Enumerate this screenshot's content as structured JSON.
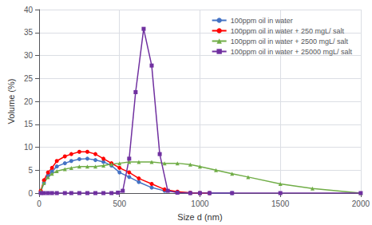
{
  "chart_data": {
    "type": "line",
    "xlabel": "Size d (nm)",
    "ylabel": "Volume (%)",
    "xlim": [
      0,
      2000
    ],
    "ylim": [
      0,
      40
    ],
    "xticks": [
      0,
      500,
      1000,
      1500,
      2000
    ],
    "yticks": [
      0,
      5,
      10,
      15,
      20,
      25,
      30,
      35,
      40
    ],
    "grid": true,
    "legend": "upper right",
    "series": [
      {
        "name": "100ppm oil in water",
        "color": "#4472C4",
        "marker": "circle",
        "x": [
          10,
          30,
          55,
          80,
          110,
          160,
          200,
          250,
          300,
          350,
          400,
          450,
          500,
          560,
          620,
          700,
          780,
          860,
          940,
          1000,
          1060,
          1200
        ],
        "values": [
          0.2,
          2.2,
          3.8,
          4.7,
          5.8,
          6.5,
          7.0,
          7.4,
          7.5,
          7.2,
          6.8,
          6.0,
          4.5,
          3.5,
          2.4,
          1.2,
          0.5,
          0.2,
          0.05,
          0.0,
          0.0,
          0.0
        ]
      },
      {
        "name": "100ppm oil in water + 250 mgL/ salt",
        "color": "#FF0000",
        "marker": "circle",
        "x": [
          10,
          30,
          55,
          80,
          110,
          160,
          200,
          250,
          300,
          350,
          400,
          450,
          500,
          560,
          620,
          700,
          780,
          860,
          940,
          1000,
          1060
        ],
        "values": [
          0.5,
          2.8,
          4.5,
          5.5,
          7.0,
          8.0,
          8.5,
          9.0,
          9.0,
          8.5,
          7.5,
          6.5,
          5.5,
          4.5,
          3.2,
          2.0,
          0.8,
          0.3,
          0.05,
          0.0,
          0.0
        ]
      },
      {
        "name": "100ppm oil in water + 2500 mgL/ salt",
        "color": "#70AD47",
        "marker": "triangle",
        "x": [
          10,
          30,
          55,
          80,
          110,
          160,
          200,
          250,
          300,
          350,
          400,
          450,
          500,
          560,
          620,
          700,
          780,
          860,
          940,
          1000,
          1100,
          1200,
          1300,
          1500,
          1700,
          2000
        ],
        "values": [
          0.5,
          2.2,
          3.5,
          4.2,
          4.8,
          5.2,
          5.5,
          5.8,
          5.8,
          5.8,
          6.0,
          6.3,
          6.5,
          6.8,
          6.8,
          6.8,
          6.5,
          6.5,
          6.2,
          5.8,
          5.0,
          4.2,
          3.5,
          2.0,
          1.0,
          0.0
        ]
      },
      {
        "name": "100ppm oil in water + 25000 mgL/ salt",
        "color": "#7030A0",
        "marker": "square",
        "x": [
          10,
          30,
          55,
          80,
          110,
          160,
          200,
          250,
          300,
          350,
          400,
          450,
          490,
          520,
          560,
          600,
          650,
          700,
          750,
          800,
          860,
          940,
          1000,
          1060,
          1200,
          1500,
          2000
        ],
        "values": [
          0.0,
          0.0,
          0.0,
          0.0,
          0.0,
          0.0,
          0.0,
          0.0,
          0.0,
          0.0,
          0.0,
          0.0,
          0.1,
          0.5,
          7.5,
          22.0,
          35.8,
          27.8,
          8.5,
          0.5,
          0.1,
          0.0,
          0.0,
          0.0,
          0.0,
          0.0,
          0.0
        ]
      }
    ]
  }
}
